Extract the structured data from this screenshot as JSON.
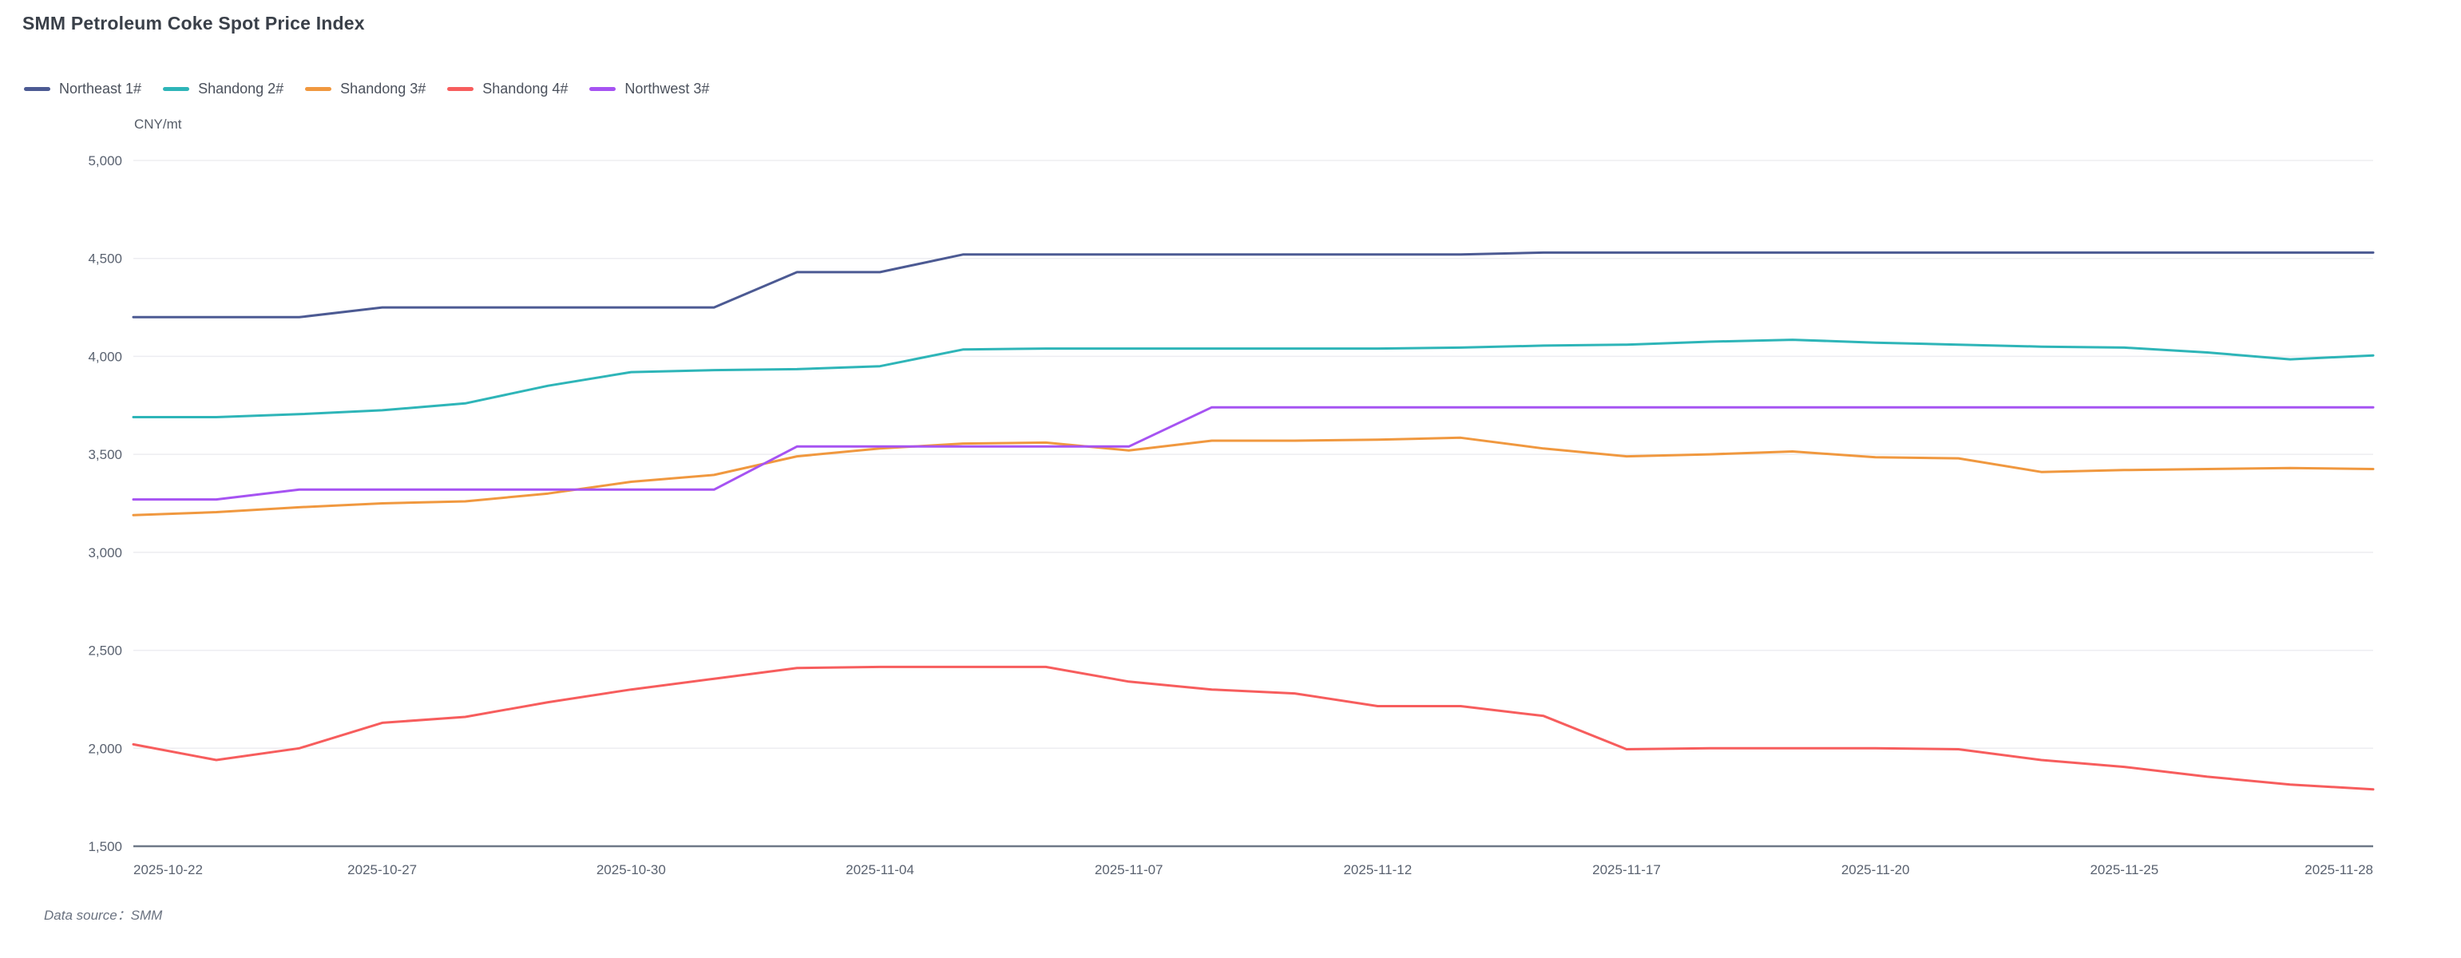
{
  "header": {
    "title": "SMM Petroleum Coke Spot Price Index"
  },
  "unit_label": "CNY/mt",
  "footer": {
    "data_source_label": "Data source：",
    "data_source_value": "SMM"
  },
  "colors": {
    "title_text": "#3a4049",
    "legend_text": "#4b515c",
    "axis_text": "#5a6270",
    "gridline": "#ededf1",
    "axis_line": "#6e7887",
    "background": "#ffffff"
  },
  "chart_data": {
    "type": "line",
    "title": "SMM Petroleum Coke Spot Price Index",
    "xlabel": "",
    "ylabel": "CNY/mt",
    "ylim": [
      1500,
      5000
    ],
    "y_tick_step": 500,
    "grid": "horizontal-only",
    "legend_position": "top-left",
    "y_ticks": [
      5000,
      4500,
      4000,
      3500,
      3000,
      2500,
      2000,
      1500
    ],
    "x": [
      "2025-10-22",
      "2025-10-23",
      "2025-10-24",
      "2025-10-27",
      "2025-10-28",
      "2025-10-29",
      "2025-10-30",
      "2025-10-31",
      "2025-11-03",
      "2025-11-04",
      "2025-11-05",
      "2025-11-06",
      "2025-11-07",
      "2025-11-10",
      "2025-11-11",
      "2025-11-12",
      "2025-11-13",
      "2025-11-14",
      "2025-11-17",
      "2025-11-18",
      "2025-11-19",
      "2025-11-20",
      "2025-11-21",
      "2025-11-24",
      "2025-11-25",
      "2025-11-26",
      "2025-11-27",
      "2025-11-28"
    ],
    "x_tick_indices": [
      0,
      3,
      6,
      9,
      12,
      15,
      18,
      21,
      24,
      27
    ],
    "x_tick_labels": [
      "2025-10-22",
      "2025-10-27",
      "2025-10-30",
      "2025-11-04",
      "2025-11-07",
      "2025-11-12",
      "2025-11-17",
      "2025-11-20",
      "2025-11-25",
      "2025-11-28"
    ],
    "series": [
      {
        "name": "Northeast 1#",
        "color": "#4c5a93",
        "values": [
          4200,
          4200,
          4200,
          4250,
          4250,
          4250,
          4250,
          4250,
          4430,
          4430,
          4520,
          4520,
          4520,
          4520,
          4520,
          4520,
          4520,
          4530,
          4530,
          4530,
          4530,
          4530,
          4530,
          4530,
          4530,
          4530,
          4530,
          4530
        ]
      },
      {
        "name": "Shandong 2#",
        "color": "#2eb5b8",
        "values": [
          3690,
          3690,
          3705,
          3725,
          3760,
          3850,
          3920,
          3930,
          3935,
          3950,
          4035,
          4040,
          4040,
          4040,
          4040,
          4040,
          4045,
          4055,
          4060,
          4075,
          4085,
          4070,
          4060,
          4050,
          4045,
          4020,
          3985,
          4005
        ]
      },
      {
        "name": "Shandong 3#",
        "color": "#f0983f",
        "values": [
          3190,
          3205,
          3230,
          3250,
          3260,
          3300,
          3360,
          3395,
          3490,
          3530,
          3555,
          3560,
          3520,
          3570,
          3570,
          3575,
          3585,
          3530,
          3490,
          3500,
          3515,
          3485,
          3480,
          3410,
          3420,
          3425,
          3430,
          3425
        ]
      },
      {
        "name": "Shandong 4#",
        "color": "#f75d5d",
        "values": [
          2020,
          1940,
          2000,
          2130,
          2160,
          2235,
          2300,
          2355,
          2410,
          2415,
          2415,
          2415,
          2340,
          2300,
          2280,
          2215,
          2215,
          2165,
          1995,
          2000,
          2000,
          2000,
          1995,
          1940,
          1905,
          1855,
          1815,
          1790
        ]
      },
      {
        "name": "Northwest 3#",
        "color": "#a653f2",
        "values": [
          3270,
          3270,
          3320,
          3320,
          3320,
          3320,
          3320,
          3320,
          3540,
          3540,
          3540,
          3540,
          3540,
          3740,
          3740,
          3740,
          3740,
          3740,
          3740,
          3740,
          3740,
          3740,
          3740,
          3740,
          3740,
          3740,
          3740,
          3740
        ]
      }
    ]
  }
}
